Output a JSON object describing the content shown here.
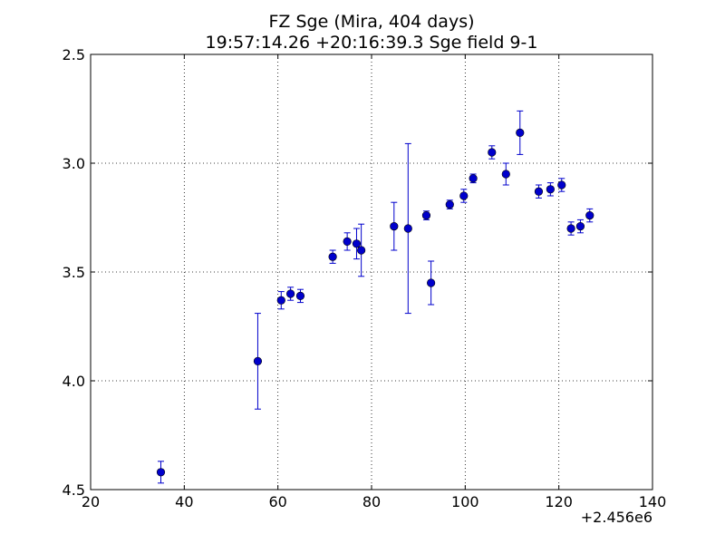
{
  "chart_data": {
    "type": "scatter",
    "title": "FZ Sge (Mira, 404 days)",
    "subtitle": "19:57:14.26 +20:16:39.3 Sge field 9-1",
    "xlabel": "",
    "ylabel": "",
    "x_offset_label": "+2.456e6",
    "xlim": [
      20,
      140
    ],
    "ylim": [
      4.5,
      2.5
    ],
    "y_inverted": true,
    "xticks": [
      20,
      40,
      60,
      80,
      100,
      120,
      140
    ],
    "yticks": [
      2.5,
      3.0,
      3.5,
      4.0,
      4.5
    ],
    "xtick_labels": [
      "20",
      "40",
      "60",
      "80",
      "100",
      "120",
      "140"
    ],
    "ytick_labels": [
      "2.5",
      "3.0",
      "3.5",
      "4.0",
      "4.5"
    ],
    "grid": true,
    "marker_color": "#0000cc",
    "errorbar_color": "#0000cc",
    "points": [
      {
        "x": 35.0,
        "y": 4.42,
        "err": 0.05
      },
      {
        "x": 55.7,
        "y": 3.91,
        "err": 0.22
      },
      {
        "x": 60.7,
        "y": 3.63,
        "err": 0.04
      },
      {
        "x": 62.7,
        "y": 3.6,
        "err": 0.03
      },
      {
        "x": 64.8,
        "y": 3.61,
        "err": 0.03
      },
      {
        "x": 71.7,
        "y": 3.43,
        "err": 0.03
      },
      {
        "x": 74.8,
        "y": 3.36,
        "err": 0.04
      },
      {
        "x": 76.8,
        "y": 3.37,
        "err": 0.07
      },
      {
        "x": 77.8,
        "y": 3.4,
        "err": 0.12
      },
      {
        "x": 84.8,
        "y": 3.29,
        "err": 0.11
      },
      {
        "x": 87.8,
        "y": 3.3,
        "err": 0.39
      },
      {
        "x": 91.7,
        "y": 3.24,
        "err": 0.02
      },
      {
        "x": 92.7,
        "y": 3.55,
        "err": 0.1
      },
      {
        "x": 96.7,
        "y": 3.19,
        "err": 0.02
      },
      {
        "x": 99.7,
        "y": 3.15,
        "err": 0.03
      },
      {
        "x": 101.7,
        "y": 3.07,
        "err": 0.02
      },
      {
        "x": 105.7,
        "y": 2.95,
        "err": 0.03
      },
      {
        "x": 108.7,
        "y": 3.05,
        "err": 0.05
      },
      {
        "x": 111.7,
        "y": 2.86,
        "err": 0.1
      },
      {
        "x": 115.7,
        "y": 3.13,
        "err": 0.03
      },
      {
        "x": 118.2,
        "y": 3.12,
        "err": 0.03
      },
      {
        "x": 120.6,
        "y": 3.1,
        "err": 0.03
      },
      {
        "x": 122.6,
        "y": 3.3,
        "err": 0.03
      },
      {
        "x": 124.6,
        "y": 3.29,
        "err": 0.03
      },
      {
        "x": 126.6,
        "y": 3.24,
        "err": 0.03
      }
    ]
  }
}
